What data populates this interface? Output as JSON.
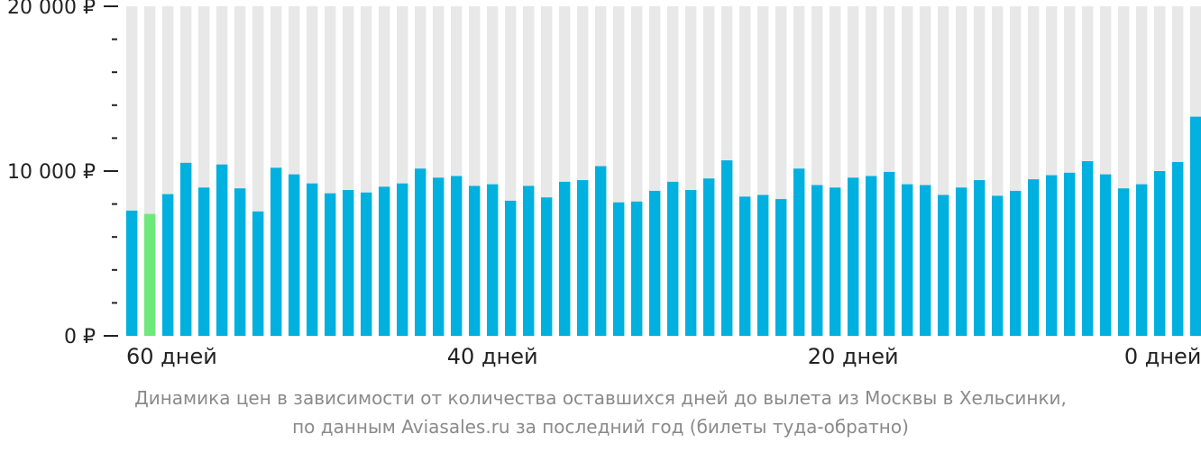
{
  "chart_data": {
    "type": "bar",
    "ylim": [
      0,
      20000
    ],
    "yticks": [
      {
        "value": 0,
        "label": "0 ₽"
      },
      {
        "value": 10000,
        "label": "10 000 ₽"
      },
      {
        "value": 20000,
        "label": "20 000 ₽"
      }
    ],
    "minor_tick_step": 2000,
    "xtick_labels": [
      {
        "index": 1,
        "label": "60 дней"
      },
      {
        "index": 20,
        "label": "40 дней"
      },
      {
        "index": 40,
        "label": "20 дней"
      },
      {
        "index": 59,
        "label": "0 дней"
      }
    ],
    "highlight_index": 1,
    "values": [
      7600,
      7400,
      8600,
      10500,
      9000,
      10400,
      8950,
      7550,
      10200,
      9800,
      9250,
      8650,
      8850,
      8700,
      9050,
      9250,
      10150,
      9600,
      9700,
      9100,
      9200,
      8200,
      9100,
      8400,
      9350,
      9450,
      10300,
      8100,
      8150,
      8800,
      9350,
      8850,
      9550,
      10650,
      8450,
      8550,
      8300,
      10150,
      9150,
      9000,
      9600,
      9700,
      9950,
      9200,
      9150,
      8550,
      9000,
      9450,
      8500,
      8800,
      9500,
      9750,
      9900,
      10600,
      9800,
      8950,
      9200,
      10000,
      10550,
      13300
    ]
  },
  "colors": {
    "bar": "#00b0de",
    "highlight": "#6ee87a",
    "background_bar": "#e8e8e8",
    "axis": "#222222"
  },
  "caption": {
    "line1": "Динамика цен в зависимости от количества оставшихся дней до вылета из Москвы в Хельсинки,",
    "line2": "по данным Aviasales.ru за последний год (билеты туда-обратно)"
  }
}
